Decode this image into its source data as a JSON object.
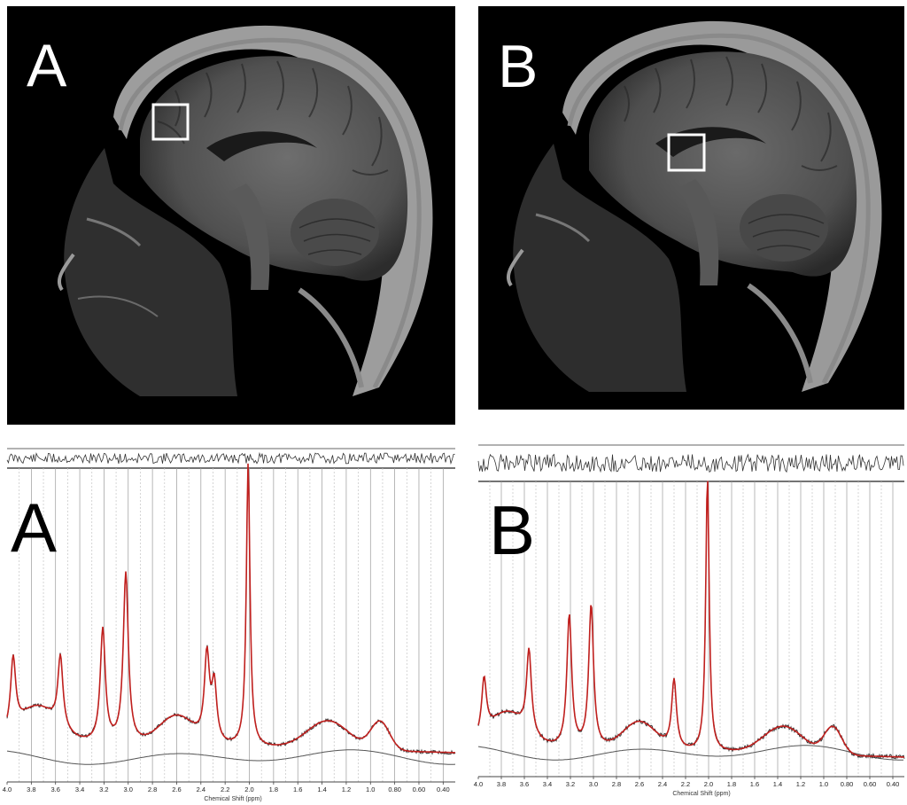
{
  "panels": {
    "mri_a": {
      "label": "A"
    },
    "mri_b": {
      "label": "B"
    },
    "spec_a": {
      "label": "A",
      "x_axis_title": "Chemical Shift (ppm)"
    },
    "spec_b": {
      "label": "B",
      "x_axis_title": "Chemical Shift (ppm)"
    }
  },
  "colors": {
    "fit_line": "#c0201e",
    "data_line": "#222222",
    "baseline": "#555555",
    "roi_box": "#ffffff"
  },
  "chart_data": [
    {
      "type": "line",
      "panel": "A",
      "xlabel": "Chemical Shift (ppm)",
      "x_reversed": true,
      "x_ticks": [
        "4.0",
        "3.8",
        "3.6",
        "3.4",
        "3.2",
        "3.0",
        "2.8",
        "2.6",
        "2.4",
        "2.2",
        "2.0",
        "1.8",
        "1.6",
        "1.4",
        "1.2",
        "1.0",
        "0.80",
        "0.60",
        "0.40"
      ],
      "series": [
        {
          "peaks_ppm": [
            2.01,
            3.02,
            3.21,
            3.56,
            3.95,
            2.35,
            2.29
          ],
          "relative_height": [
            1.0,
            0.6,
            0.4,
            0.25,
            0.25,
            0.3,
            0.2
          ]
        }
      ]
    },
    {
      "type": "line",
      "panel": "B",
      "xlabel": "Chemical Shift (ppm)",
      "x_reversed": true,
      "x_ticks": [
        "4.0",
        "3.8",
        "3.6",
        "3.4",
        "3.2",
        "3.0",
        "2.8",
        "2.6",
        "2.4",
        "2.2",
        "2.0",
        "1.8",
        "1.6",
        "1.4",
        "1.2",
        "1.0",
        "0.80",
        "0.60",
        "0.40"
      ],
      "series": [
        {
          "peaks_ppm": [
            2.01,
            3.02,
            3.21,
            3.56,
            3.95,
            2.3
          ],
          "relative_height": [
            1.0,
            0.52,
            0.48,
            0.3,
            0.2,
            0.25
          ]
        }
      ]
    }
  ]
}
